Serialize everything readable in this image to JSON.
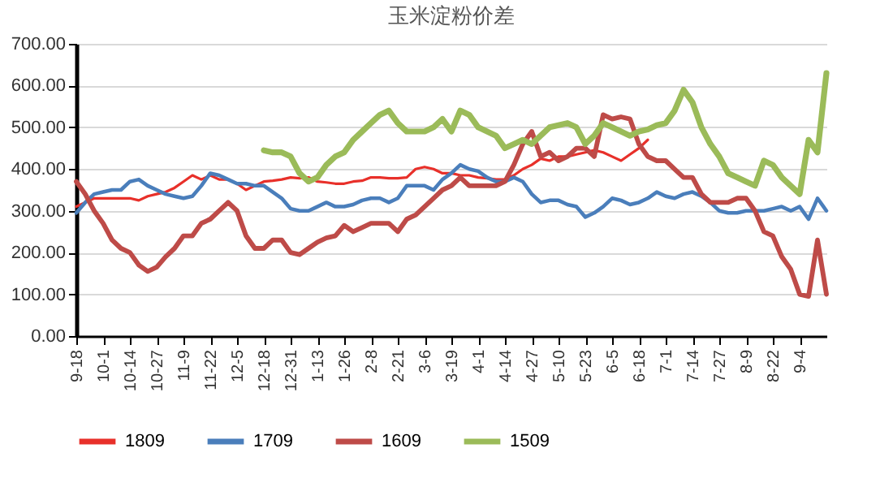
{
  "chart_data": {
    "type": "line",
    "title": "玉米淀粉价差",
    "categories": [
      "9-18",
      null,
      null,
      "10-1",
      null,
      null,
      "10-14",
      null,
      null,
      "10-27",
      null,
      null,
      "11-9",
      null,
      null,
      "11-22",
      null,
      null,
      "12-5",
      null,
      null,
      "12-18",
      null,
      null,
      "12-31",
      null,
      null,
      "1-13",
      null,
      null,
      "1-26",
      null,
      null,
      "2-8",
      null,
      null,
      "2-21",
      null,
      null,
      "3-6",
      null,
      null,
      "3-19",
      null,
      null,
      "4-1",
      null,
      null,
      "4-14",
      null,
      null,
      "4-27",
      null,
      null,
      "5-10",
      null,
      null,
      "5-23",
      null,
      null,
      "6-5",
      null,
      null,
      "6-18",
      null,
      null,
      "7-1",
      null,
      null,
      "7-14",
      null,
      null,
      "7-27",
      null,
      null,
      "8-9",
      null,
      null,
      "8-22",
      null,
      null,
      "9-4",
      null,
      null,
      null
    ],
    "series": [
      {
        "name": "1809",
        "color": "#e8302a",
        "values": [
          310,
          320,
          330,
          330,
          330,
          330,
          330,
          325,
          335,
          340,
          345,
          355,
          370,
          385,
          375,
          385,
          375,
          375,
          365,
          350,
          360,
          370,
          372,
          375,
          380,
          378,
          380,
          370,
          368,
          365,
          365,
          370,
          372,
          380,
          380,
          378,
          378,
          380,
          400,
          405,
          400,
          390,
          390,
          385,
          385,
          380,
          378,
          375,
          375,
          385,
          400,
          410,
          425,
          420,
          430,
          430,
          435,
          440,
          445,
          440,
          430,
          420,
          435,
          450,
          470,
          null,
          null,
          null,
          null,
          null,
          null,
          null,
          null,
          null,
          null,
          null,
          null,
          null,
          null,
          null,
          null,
          null,
          null,
          null,
          null
        ]
      },
      {
        "name": "1709",
        "color": "#4a7ebb",
        "values": [
          295,
          320,
          340,
          345,
          350,
          350,
          370,
          375,
          360,
          350,
          340,
          335,
          330,
          335,
          360,
          390,
          385,
          375,
          365,
          365,
          360,
          360,
          345,
          330,
          305,
          300,
          300,
          310,
          320,
          310,
          310,
          315,
          325,
          330,
          330,
          320,
          330,
          360,
          360,
          360,
          350,
          375,
          390,
          410,
          400,
          395,
          380,
          370,
          370,
          380,
          370,
          340,
          320,
          325,
          325,
          315,
          310,
          285,
          295,
          310,
          330,
          325,
          315,
          320,
          330,
          345,
          335,
          330,
          340,
          345,
          335,
          320,
          300,
          295,
          295,
          300,
          300,
          300,
          305,
          310,
          300,
          310,
          280,
          330,
          300
        ]
      },
      {
        "name": "1609",
        "color": "#be4b48",
        "values": [
          370,
          340,
          300,
          270,
          230,
          210,
          200,
          170,
          155,
          165,
          190,
          210,
          240,
          240,
          270,
          280,
          300,
          320,
          300,
          240,
          210,
          210,
          230,
          230,
          200,
          195,
          210,
          225,
          235,
          240,
          265,
          250,
          260,
          270,
          270,
          270,
          250,
          280,
          290,
          310,
          330,
          350,
          360,
          380,
          360,
          360,
          360,
          360,
          370,
          410,
          460,
          490,
          430,
          440,
          420,
          430,
          450,
          450,
          430,
          530,
          520,
          525,
          520,
          460,
          430,
          420,
          420,
          400,
          380,
          380,
          340,
          320,
          320,
          320,
          330,
          330,
          300,
          250,
          240,
          190,
          160,
          100,
          95,
          230,
          100
        ]
      },
      {
        "name": "1509",
        "color": "#9bbb59",
        "values": [
          null,
          null,
          null,
          null,
          null,
          null,
          null,
          null,
          null,
          null,
          null,
          null,
          null,
          null,
          null,
          null,
          null,
          null,
          null,
          null,
          null,
          445,
          440,
          440,
          430,
          390,
          370,
          380,
          410,
          430,
          440,
          470,
          490,
          510,
          530,
          540,
          510,
          490,
          490,
          490,
          500,
          520,
          490,
          540,
          530,
          500,
          490,
          480,
          450,
          460,
          470,
          460,
          480,
          500,
          505,
          510,
          500,
          460,
          480,
          510,
          500,
          490,
          480,
          490,
          495,
          505,
          510,
          540,
          590,
          560,
          500,
          460,
          430,
          390,
          380,
          370,
          360,
          420,
          410,
          380,
          360,
          340,
          470,
          440,
          630
        ]
      }
    ],
    "ylim": [
      0,
      700
    ],
    "yticks": [
      {
        "value": 0,
        "label": "0.00"
      },
      {
        "value": 100,
        "label": "100.00"
      },
      {
        "value": 200,
        "label": "200.00"
      },
      {
        "value": 300,
        "label": "300.00"
      },
      {
        "value": 400,
        "label": "400.00"
      },
      {
        "value": 500,
        "label": "500.00"
      },
      {
        "value": 600,
        "label": "600.00"
      },
      {
        "value": 700,
        "label": "700.00"
      }
    ],
    "grid": "y",
    "legend": "bottom"
  }
}
